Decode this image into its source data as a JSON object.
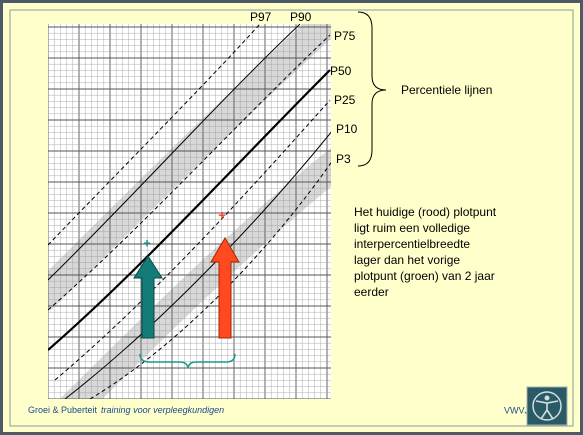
{
  "percentile_labels": [
    "P97",
    "P90",
    "P75",
    "P50",
    "P25",
    "P10",
    "P3"
  ],
  "brace_label": "Percentiele lijnen",
  "explanation": [
    "Het huidige (rood) plotpunt",
    "ligt ruim een volledige",
    "interpercentielbreedte",
    "lager dan het vorige",
    "plotpunt (groen) van 2 jaar",
    "eerder"
  ],
  "footer": {
    "title": "Groei & Puberteit",
    "subtitle": "training voor verpleegkundigen",
    "organisation": "VWVJ"
  }
}
